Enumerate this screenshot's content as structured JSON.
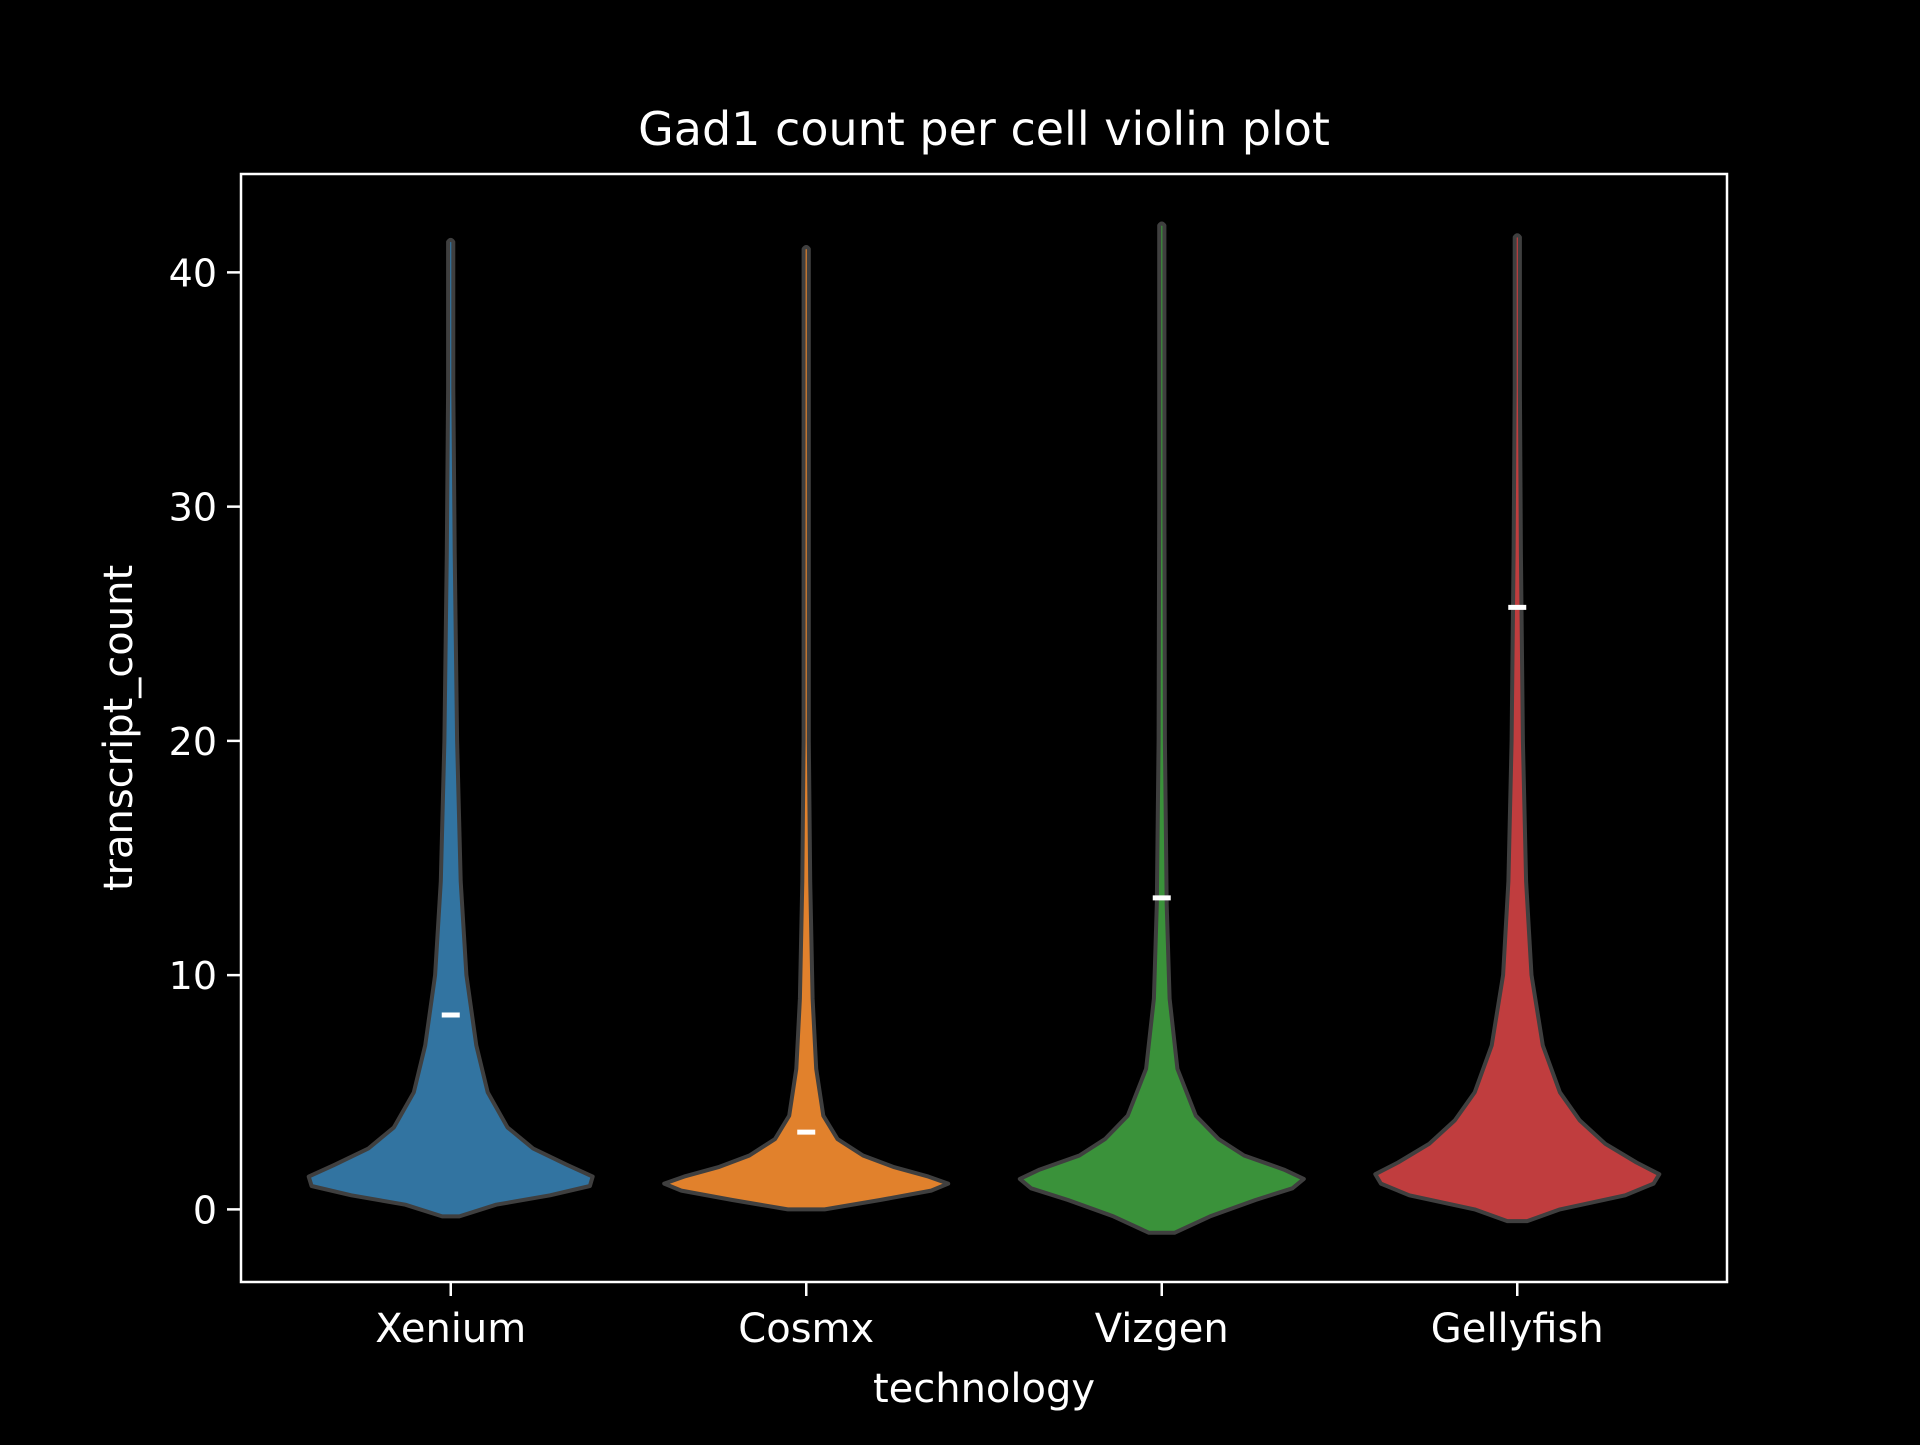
{
  "chart_data": {
    "type": "violin",
    "title": "Gad1 count per cell violin plot",
    "xlabel": "technology",
    "ylabel": "transcript_count",
    "ylim": [
      -3.1,
      44.2
    ],
    "yticks": [
      0,
      10,
      20,
      30,
      40
    ],
    "grid": false,
    "colors": {
      "background": "#000000",
      "axes": "#ffffff",
      "violin_edge": "#3f3f3f",
      "median_marker": "#ffffff"
    },
    "categories": [
      "Xenium",
      "Cosmx",
      "Vizgen",
      "Gellyfish"
    ],
    "series": [
      {
        "category": "Xenium",
        "color": "#3274a1",
        "min": -0.3,
        "max": 41.3,
        "marker": 8.3,
        "profile": [
          [
            -0.3,
            0.06
          ],
          [
            0.2,
            0.32
          ],
          [
            0.6,
            0.7
          ],
          [
            1.0,
            0.98
          ],
          [
            1.4,
            1.0
          ],
          [
            1.9,
            0.82
          ],
          [
            2.6,
            0.58
          ],
          [
            3.5,
            0.4
          ],
          [
            5,
            0.26
          ],
          [
            7,
            0.18
          ],
          [
            10,
            0.11
          ],
          [
            14,
            0.07
          ],
          [
            20,
            0.045
          ],
          [
            28,
            0.028
          ],
          [
            35,
            0.018
          ],
          [
            41.3,
            0.012
          ]
        ]
      },
      {
        "category": "Cosmx",
        "color": "#e1812c",
        "min": 0.0,
        "max": 41.0,
        "marker": 3.3,
        "profile": [
          [
            0.0,
            0.13
          ],
          [
            0.4,
            0.52
          ],
          [
            0.8,
            0.88
          ],
          [
            1.1,
            1.0
          ],
          [
            1.4,
            0.86
          ],
          [
            1.8,
            0.62
          ],
          [
            2.3,
            0.4
          ],
          [
            3.0,
            0.22
          ],
          [
            4,
            0.12
          ],
          [
            6,
            0.07
          ],
          [
            9,
            0.045
          ],
          [
            14,
            0.028
          ],
          [
            20,
            0.018
          ],
          [
            30,
            0.014
          ],
          [
            41,
            0.011
          ]
        ]
      },
      {
        "category": "Vizgen",
        "color": "#3a923a",
        "min": -1.0,
        "max": 42.0,
        "marker": 13.3,
        "profile": [
          [
            -1.0,
            0.09
          ],
          [
            -0.3,
            0.34
          ],
          [
            0.4,
            0.66
          ],
          [
            0.9,
            0.92
          ],
          [
            1.3,
            1.0
          ],
          [
            1.7,
            0.86
          ],
          [
            2.3,
            0.58
          ],
          [
            3.0,
            0.4
          ],
          [
            4,
            0.24
          ],
          [
            6,
            0.11
          ],
          [
            9,
            0.055
          ],
          [
            13,
            0.035
          ],
          [
            20,
            0.022
          ],
          [
            30,
            0.016
          ],
          [
            42,
            0.012
          ]
        ]
      },
      {
        "category": "Gellyfish",
        "color": "#c03d3e",
        "min": -0.5,
        "max": 41.5,
        "marker": 25.7,
        "profile": [
          [
            -0.5,
            0.07
          ],
          [
            0.0,
            0.3
          ],
          [
            0.6,
            0.76
          ],
          [
            1.1,
            0.96
          ],
          [
            1.5,
            1.0
          ],
          [
            2.0,
            0.84
          ],
          [
            2.8,
            0.62
          ],
          [
            3.8,
            0.44
          ],
          [
            5,
            0.3
          ],
          [
            7,
            0.18
          ],
          [
            10,
            0.1
          ],
          [
            14,
            0.062
          ],
          [
            20,
            0.04
          ],
          [
            28,
            0.026
          ],
          [
            35,
            0.018
          ],
          [
            41.5,
            0.012
          ]
        ]
      }
    ]
  }
}
